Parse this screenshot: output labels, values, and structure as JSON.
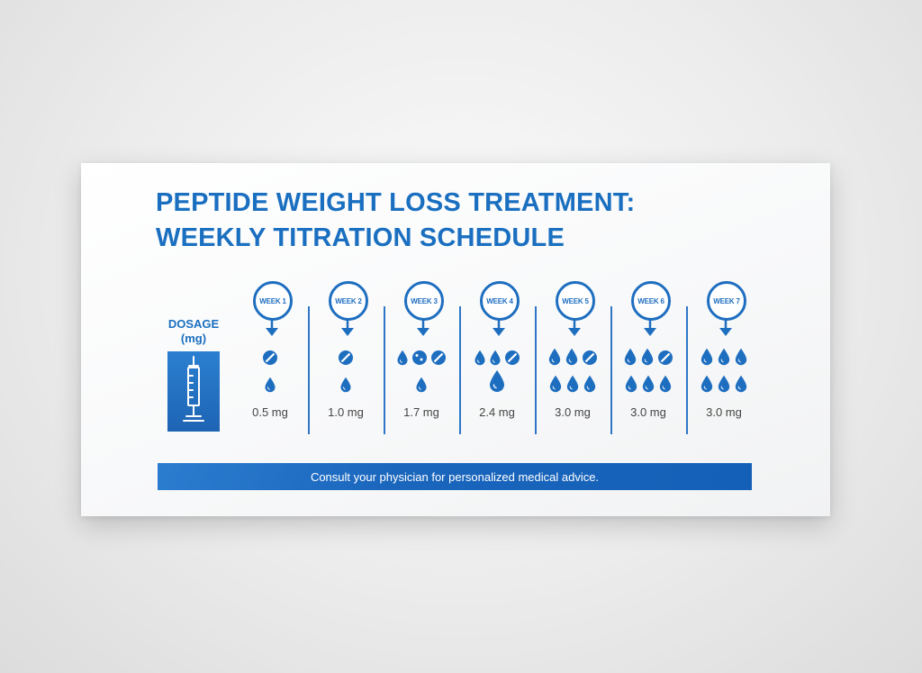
{
  "title": {
    "line1": "PEPTIDE WEIGHT LOSS TREATMENT:",
    "line2": "WEEKLY TITRATION SCHEDULE"
  },
  "dosage_label": {
    "line1": "DOSAGE",
    "line2": "(mg)"
  },
  "weeks": [
    {
      "label": "WEEK 1",
      "dose": "0.5 mg",
      "top_icons": [
        "tablet"
      ],
      "bottom_icons": [
        "drop-small"
      ]
    },
    {
      "label": "WEEK 2",
      "dose": "1.0 mg",
      "top_icons": [
        "tablet"
      ],
      "bottom_icons": [
        "drop-small"
      ]
    },
    {
      "label": "WEEK 3",
      "dose": "1.7 mg",
      "top_icons": [
        "drop-small",
        "pill-dots",
        "tablet"
      ],
      "bottom_icons": [
        "drop-small"
      ]
    },
    {
      "label": "WEEK 4",
      "dose": "2.4 mg",
      "top_icons": [
        "drop-small",
        "drop-small",
        "tablet"
      ],
      "bottom_icons": [
        "drop-large"
      ]
    },
    {
      "label": "WEEK 5",
      "dose": "3.0 mg",
      "top_icons": [
        "drop",
        "drop",
        "tablet"
      ],
      "bottom_icons": [
        "drop",
        "drop",
        "drop"
      ]
    },
    {
      "label": "WEEK 6",
      "dose": "3.0 mg",
      "top_icons": [
        "drop",
        "drop",
        "tablet"
      ],
      "bottom_icons": [
        "drop",
        "drop",
        "drop"
      ]
    },
    {
      "label": "WEEK 7",
      "dose": "3.0 mg",
      "top_icons": [
        "drop",
        "drop",
        "drop"
      ],
      "bottom_icons": [
        "drop",
        "drop",
        "drop"
      ]
    }
  ],
  "footer": {
    "text": "Consult your physician for personalized medical advice."
  },
  "colors": {
    "accent": "#1a6fc0",
    "icon": "#1e6ec0",
    "text": "#444444"
  },
  "icons": {
    "syringe": "syringe-icon",
    "arrow": "arrow-down-icon"
  }
}
